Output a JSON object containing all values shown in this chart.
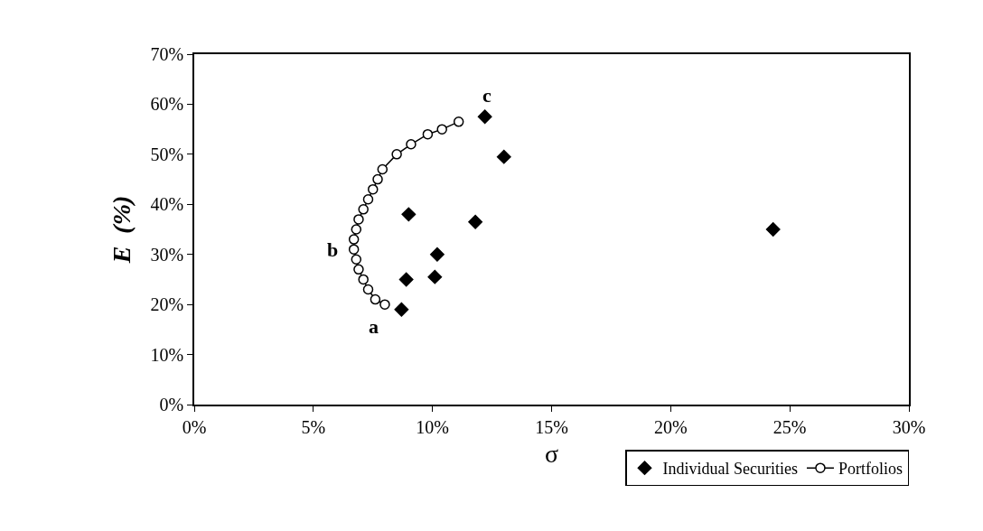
{
  "chart_data": {
    "type": "scatter",
    "xlabel": "σ",
    "ylabel": "E  (%)",
    "xlim": [
      0,
      30
    ],
    "ylim": [
      0,
      70
    ],
    "xticks": [
      {
        "value": 0,
        "label": "0%"
      },
      {
        "value": 5,
        "label": "5%"
      },
      {
        "value": 10,
        "label": "10%"
      },
      {
        "value": 15,
        "label": "15%"
      },
      {
        "value": 20,
        "label": "20%"
      },
      {
        "value": 25,
        "label": "25%"
      },
      {
        "value": 30,
        "label": "30%"
      }
    ],
    "yticks": [
      {
        "value": 0,
        "label": "0%"
      },
      {
        "value": 10,
        "label": "10%"
      },
      {
        "value": 20,
        "label": "20%"
      },
      {
        "value": 30,
        "label": "30%"
      },
      {
        "value": 40,
        "label": "40%"
      },
      {
        "value": 50,
        "label": "50%"
      },
      {
        "value": 60,
        "label": "60%"
      },
      {
        "value": 70,
        "label": "70%"
      }
    ],
    "grid": false,
    "legend": "bottom right",
    "series": [
      {
        "name": "Individual Securities",
        "color": "#000000",
        "marker": "diamond",
        "x": [
          8.7,
          8.9,
          9.0,
          10.1,
          10.2,
          11.8,
          12.2,
          13.0,
          24.3
        ],
        "values": [
          19,
          25,
          38,
          25.5,
          30,
          36.5,
          57.5,
          49.5,
          35
        ]
      },
      {
        "name": "Portfolios",
        "type": "line",
        "color": "#000000",
        "marker": "circle",
        "x": [
          8.0,
          7.6,
          7.3,
          7.1,
          6.9,
          6.8,
          6.7,
          6.7,
          6.8,
          6.9,
          7.1,
          7.3,
          7.5,
          7.7,
          7.9,
          8.5,
          9.1,
          9.8,
          10.4,
          11.1
        ],
        "values": [
          20,
          21,
          23,
          25,
          27,
          29,
          31,
          33,
          35,
          37,
          39,
          41,
          43,
          45,
          47,
          50,
          52,
          54,
          55,
          56.5
        ]
      }
    ],
    "annotations": [
      {
        "text": "a",
        "x": 8.0,
        "y": 20
      },
      {
        "text": "b",
        "x": 6.7,
        "y": 31
      },
      {
        "text": "c",
        "x": 12.2,
        "y": 57.5
      }
    ]
  }
}
